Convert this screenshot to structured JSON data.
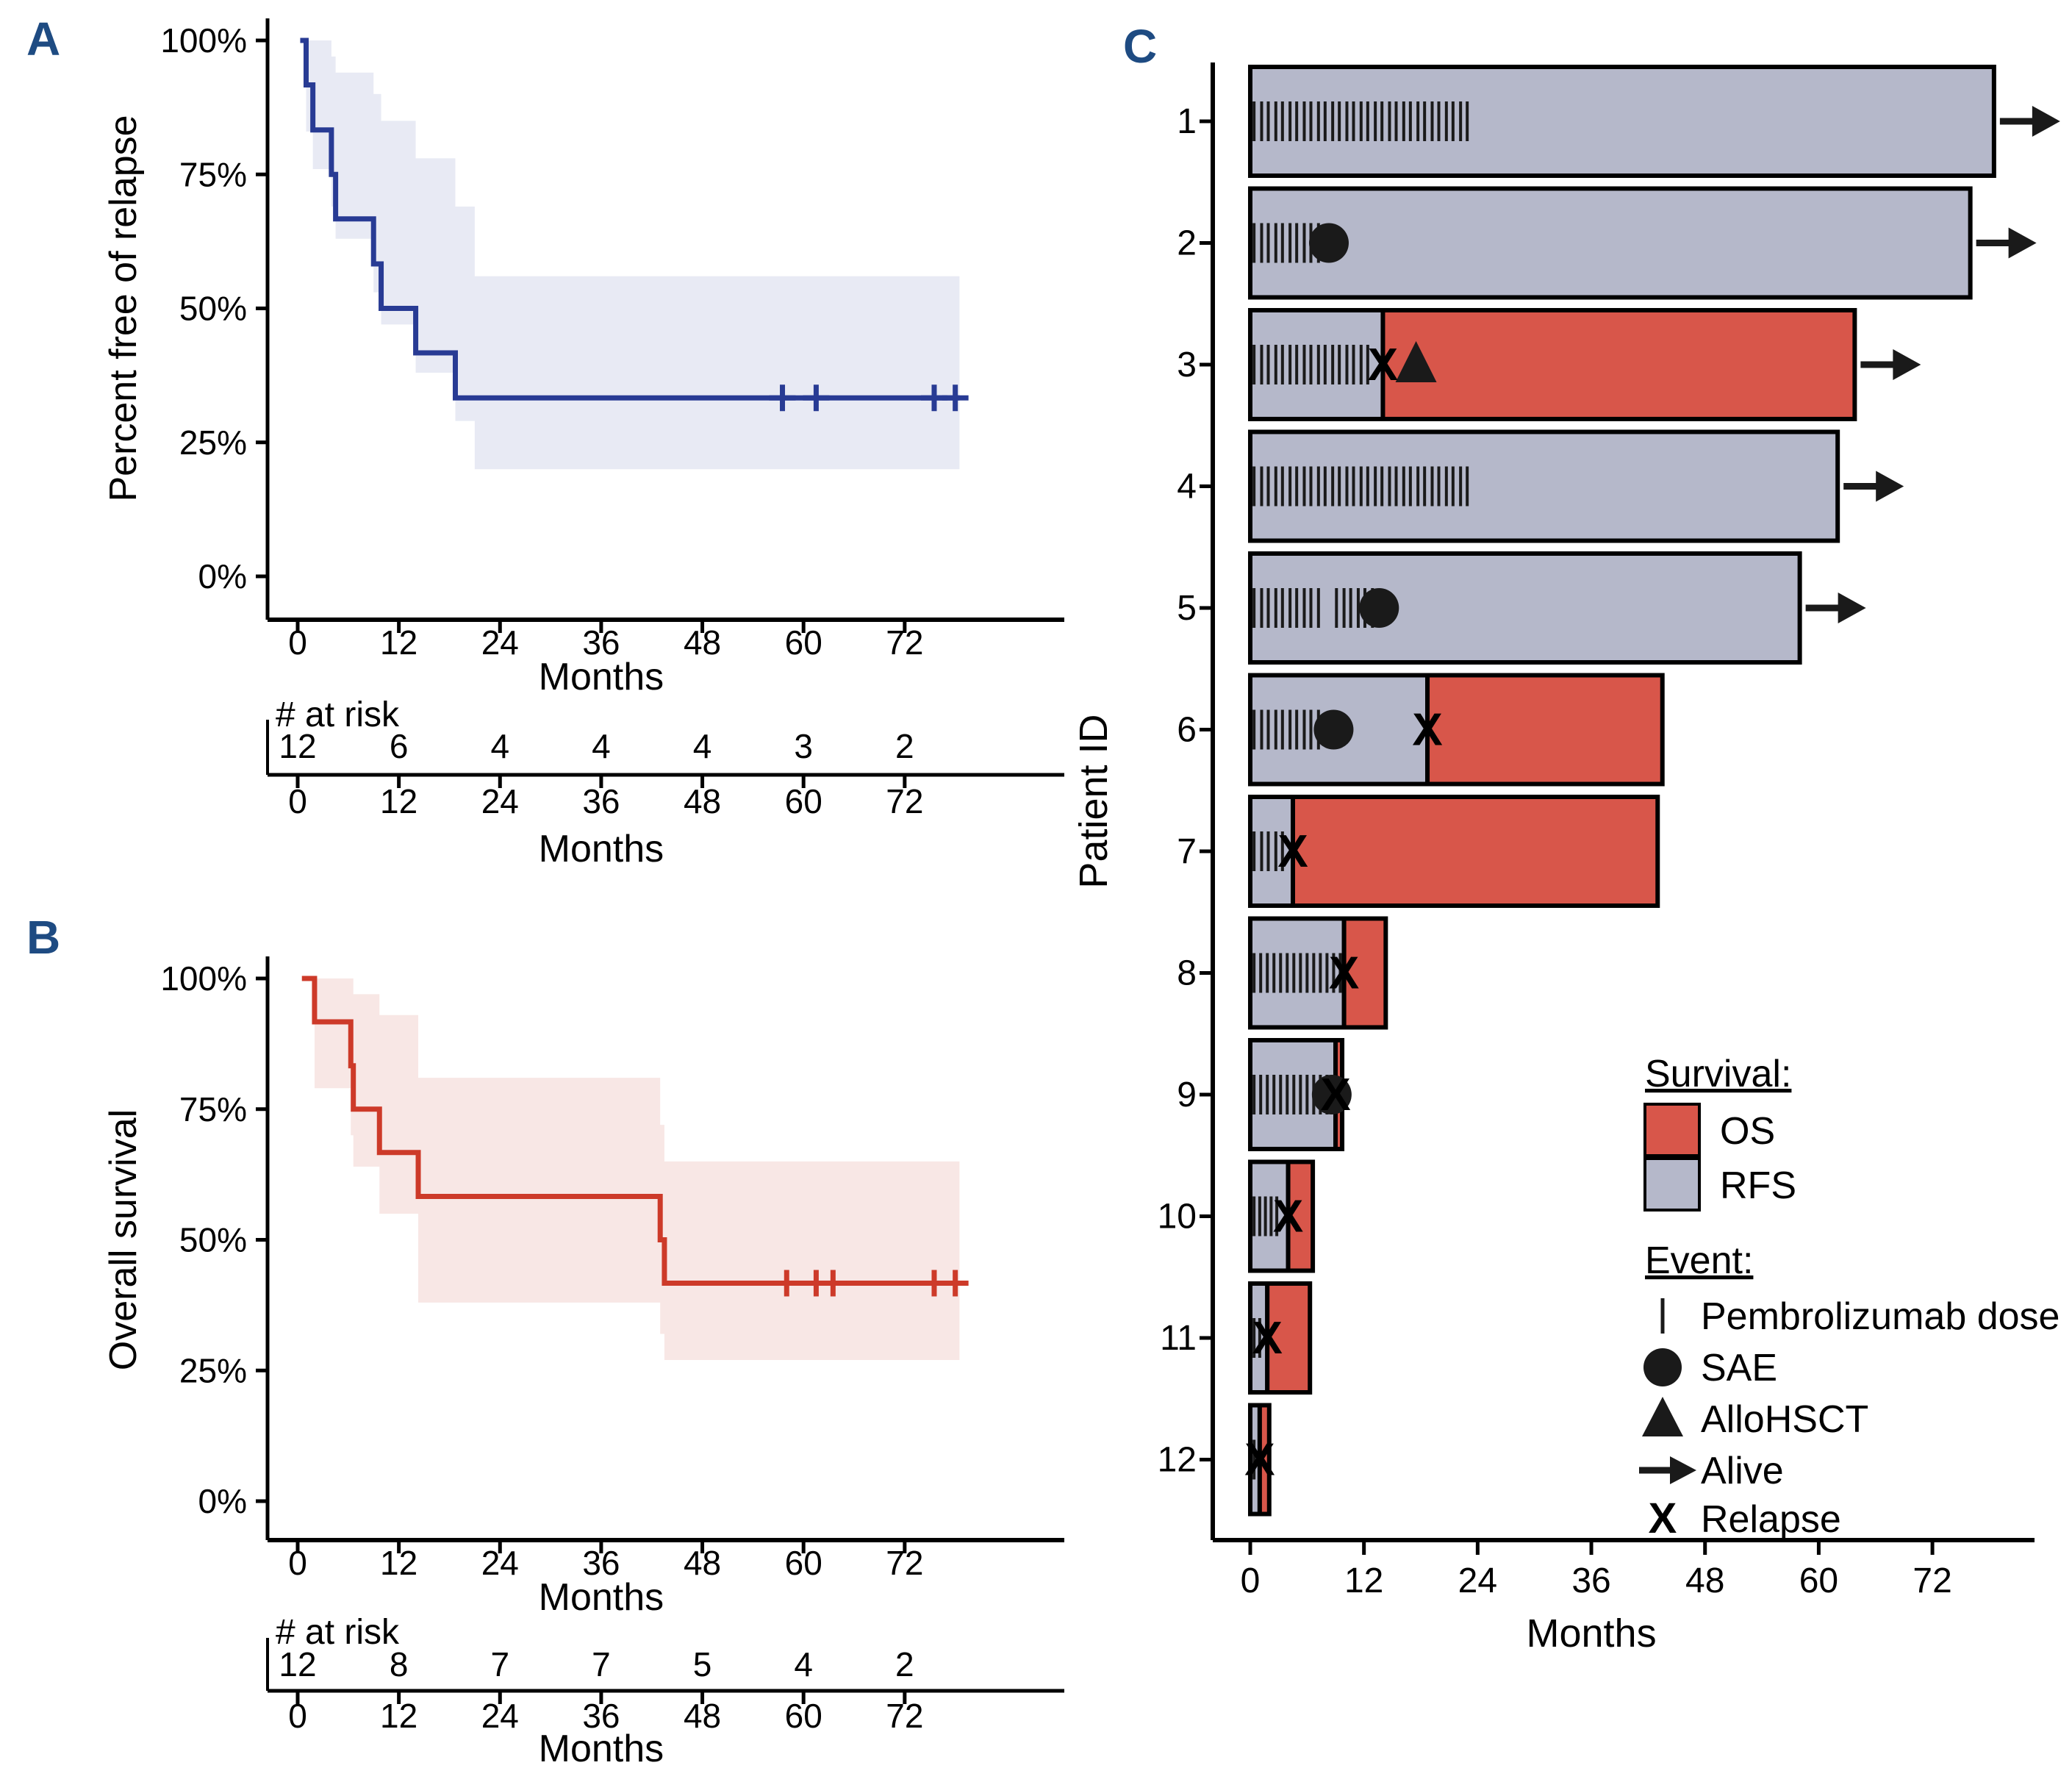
{
  "panels": {
    "a_label": "A",
    "b_label": "B",
    "c_label": "C"
  },
  "chart_data": [
    {
      "panel": "A",
      "type": "line",
      "subtype": "kaplan_meier_step",
      "ylabel": "Percent free of relapse",
      "xlabel": "Months",
      "xlim": [
        0,
        79
      ],
      "ylim": [
        0,
        100
      ],
      "x_ticks": [
        0,
        12,
        24,
        36,
        48,
        60,
        72
      ],
      "y_ticks": [
        {
          "pct": 0,
          "label": "0%"
        },
        {
          "pct": 25,
          "label": "25%"
        },
        {
          "pct": 50,
          "label": "50%"
        },
        {
          "pct": 75,
          "label": "75%"
        },
        {
          "pct": 100,
          "label": "100%"
        }
      ],
      "line_color": "#283B94",
      "ci_color": "#E8EAF4",
      "start_time": 0.3,
      "end_time": 78.5,
      "steps": [
        {
          "t": 1.0,
          "pct": 91.7
        },
        {
          "t": 1.8,
          "pct": 83.3
        },
        {
          "t": 4.0,
          "pct": 75.0
        },
        {
          "t": 4.5,
          "pct": 66.7
        },
        {
          "t": 9.0,
          "pct": 58.3
        },
        {
          "t": 9.9,
          "pct": 50.0
        },
        {
          "t": 14.0,
          "pct": 41.7
        },
        {
          "t": 18.7,
          "pct": 33.3
        }
      ],
      "censor_times": [
        57.5,
        61.5,
        75.5,
        78
      ],
      "ci_steps": [
        {
          "t": 1.0,
          "u": 100,
          "l": 83
        },
        {
          "t": 1.8,
          "u": 100,
          "l": 76
        },
        {
          "t": 4.0,
          "u": 97,
          "l": 69
        },
        {
          "t": 4.5,
          "u": 94,
          "l": 63
        },
        {
          "t": 9.0,
          "u": 90,
          "l": 53
        },
        {
          "t": 9.9,
          "u": 85,
          "l": 47
        },
        {
          "t": 14.0,
          "u": 78,
          "l": 38
        },
        {
          "t": 18.7,
          "u": 69,
          "l": 29
        },
        {
          "t": 21.0,
          "u": 56,
          "l": 20
        }
      ],
      "at_risk": {
        "label": "# at risk",
        "times": [
          0,
          12,
          24,
          36,
          48,
          60,
          72
        ],
        "counts": [
          12,
          6,
          4,
          4,
          4,
          3,
          2
        ],
        "xlabel": "Months"
      }
    },
    {
      "panel": "B",
      "type": "line",
      "subtype": "kaplan_meier_step",
      "ylabel": "Overall survival",
      "xlabel": "Months",
      "xlim": [
        0,
        79
      ],
      "ylim": [
        0,
        100
      ],
      "x_ticks": [
        0,
        12,
        24,
        36,
        48,
        60,
        72
      ],
      "y_ticks": [
        {
          "pct": 0,
          "label": "0%"
        },
        {
          "pct": 25,
          "label": "25%"
        },
        {
          "pct": 50,
          "label": "50%"
        },
        {
          "pct": 75,
          "label": "75%"
        },
        {
          "pct": 100,
          "label": "100%"
        }
      ],
      "line_color": "#CD3A29",
      "ci_color": "#F8E7E5",
      "start_time": 0.5,
      "end_time": 78.5,
      "steps": [
        {
          "t": 2.0,
          "pct": 91.7
        },
        {
          "t": 6.3,
          "pct": 83.3
        },
        {
          "t": 6.6,
          "pct": 75.0
        },
        {
          "t": 9.7,
          "pct": 66.7
        },
        {
          "t": 14.3,
          "pct": 58.3
        },
        {
          "t": 43.0,
          "pct": 50.0
        },
        {
          "t": 43.5,
          "pct": 41.7
        }
      ],
      "censor_times": [
        58,
        61.5,
        63.5,
        75.5,
        78
      ],
      "ci_steps": [
        {
          "t": 2.0,
          "u": 100,
          "l": 79
        },
        {
          "t": 6.3,
          "u": 100,
          "l": 70
        },
        {
          "t": 6.6,
          "u": 97,
          "l": 64
        },
        {
          "t": 9.7,
          "u": 93,
          "l": 55
        },
        {
          "t": 14.3,
          "u": 81,
          "l": 38
        },
        {
          "t": 43.0,
          "u": 72,
          "l": 32
        },
        {
          "t": 43.5,
          "u": 65,
          "l": 27
        }
      ],
      "at_risk": {
        "label": "# at risk",
        "times": [
          0,
          12,
          24,
          36,
          48,
          60,
          72
        ],
        "counts": [
          12,
          8,
          7,
          7,
          5,
          4,
          2
        ],
        "xlabel": "Months"
      }
    },
    {
      "panel": "C",
      "type": "bar",
      "subtype": "swimmer",
      "ylabel": "Patient ID",
      "xlabel": "Months",
      "xlim": [
        0,
        79
      ],
      "x_ticks": [
        0,
        12,
        24,
        36,
        48,
        60,
        72
      ],
      "colors": {
        "os": "#D8564A",
        "rfs": "#B5B8CA",
        "marker": "#1A1A1A"
      },
      "patients": [
        {
          "id": "1",
          "rfs_months": 78.5,
          "os_months": 78.5,
          "alive": true,
          "dose_months": [
            0.4,
            1.2,
            1.9,
            2.7,
            3.4,
            4.2,
            4.9,
            5.7,
            6.4,
            7.2,
            7.9,
            8.7,
            9.4,
            10.2,
            10.9,
            11.7,
            12.4,
            13.2,
            13.9,
            14.7,
            15.4,
            16.2,
            16.9,
            17.7,
            18.4,
            19.2,
            19.9,
            20.7,
            21.4,
            22.2,
            22.9
          ],
          "sae_months": [],
          "allohsct_month": null,
          "relapse_month": null
        },
        {
          "id": "2",
          "rfs_months": 76,
          "os_months": 76,
          "alive": true,
          "dose_months": [
            0.4,
            1.2,
            1.9,
            2.7,
            3.4,
            4.2,
            4.9,
            5.7,
            6.4,
            7.2
          ],
          "sae_months": [
            8.3
          ],
          "allohsct_month": null,
          "relapse_month": null
        },
        {
          "id": "3",
          "rfs_months": 14,
          "os_months": 63.8,
          "alive": true,
          "dose_months": [
            0.4,
            1.2,
            1.9,
            2.7,
            3.4,
            4.2,
            4.9,
            5.7,
            6.4,
            7.2,
            7.9,
            8.7,
            9.4,
            10.2,
            10.9,
            11.7,
            12.4
          ],
          "sae_months": [],
          "allohsct_month": 17.5,
          "relapse_month": 14
        },
        {
          "id": "4",
          "rfs_months": 62,
          "os_months": 62,
          "alive": true,
          "dose_months": [
            0.4,
            1.2,
            1.9,
            2.7,
            3.4,
            4.2,
            4.9,
            5.7,
            6.4,
            7.2,
            7.9,
            8.7,
            9.4,
            10.2,
            10.9,
            11.7,
            12.4,
            13.2,
            13.9,
            14.7,
            15.4,
            16.2,
            16.9,
            17.7,
            18.4,
            19.2,
            19.9,
            20.7,
            21.4,
            22.2,
            22.9
          ],
          "sae_months": [],
          "allohsct_month": null,
          "relapse_month": null
        },
        {
          "id": "5",
          "rfs_months": 58,
          "os_months": 58,
          "alive": true,
          "dose_months": [
            0.4,
            1.2,
            1.9,
            2.7,
            3.4,
            4.2,
            4.9,
            5.7,
            6.4,
            7.2,
            9.1,
            9.9,
            10.6,
            11.4,
            12.1,
            12.9
          ],
          "sae_months": [
            13.6
          ],
          "allohsct_month": null,
          "relapse_month": null
        },
        {
          "id": "6",
          "rfs_months": 18.7,
          "os_months": 43.5,
          "alive": false,
          "dose_months": [
            0.4,
            1.2,
            1.9,
            2.7,
            3.4,
            4.2,
            4.9,
            5.7,
            6.4,
            7.2
          ],
          "sae_months": [
            8.8
          ],
          "allohsct_month": null,
          "relapse_month": 18.7
        },
        {
          "id": "7",
          "rfs_months": 4.5,
          "os_months": 43,
          "alive": false,
          "dose_months": [
            0.4,
            1.2,
            1.9,
            2.7,
            3.4
          ],
          "sae_months": [],
          "allohsct_month": null,
          "relapse_month": 4.5
        },
        {
          "id": "8",
          "rfs_months": 9.9,
          "os_months": 14.3,
          "alive": false,
          "dose_months": [
            0.4,
            1.1,
            1.8,
            2.5,
            3.2,
            3.9,
            4.6,
            5.3,
            6.0,
            6.7,
            7.4,
            8.1,
            8.8,
            9.5
          ],
          "sae_months": [],
          "allohsct_month": null,
          "relapse_month": 9.9
        },
        {
          "id": "9",
          "rfs_months": 9.0,
          "os_months": 9.7,
          "alive": false,
          "dose_months": [
            0.4,
            1.1,
            1.8,
            2.5,
            3.2,
            3.9,
            4.6,
            5.3,
            6.0,
            6.7,
            7.4,
            8.1
          ],
          "sae_months": [
            8.6
          ],
          "allohsct_month": null,
          "relapse_month": 9.0
        },
        {
          "id": "10",
          "rfs_months": 4.0,
          "os_months": 6.6,
          "alive": false,
          "dose_months": [
            0.4,
            1.0,
            1.6,
            2.2,
            2.8
          ],
          "sae_months": [],
          "allohsct_month": null,
          "relapse_month": 4.0
        },
        {
          "id": "11",
          "rfs_months": 1.8,
          "os_months": 6.3,
          "alive": false,
          "dose_months": [
            0.4,
            1.0
          ],
          "sae_months": [],
          "allohsct_month": null,
          "relapse_month": 1.8
        },
        {
          "id": "12",
          "rfs_months": 1.0,
          "os_months": 2.0,
          "alive": false,
          "dose_months": [
            0.4
          ],
          "sae_months": [],
          "allohsct_month": null,
          "relapse_month": 1.0
        }
      ],
      "legend": {
        "survival_title": "Survival:",
        "survival_items": [
          {
            "label": "OS",
            "color": "#D8564A"
          },
          {
            "label": "RFS",
            "color": "#B5B8CA"
          }
        ],
        "event_title": "Event:",
        "event_items": [
          {
            "label": "Pembrolizumab dose",
            "marker": "tick"
          },
          {
            "label": "SAE",
            "marker": "circle"
          },
          {
            "label": "AlloHSCT",
            "marker": "triangle"
          },
          {
            "label": "Alive",
            "marker": "arrow"
          },
          {
            "label": "Relapse",
            "marker": "x"
          }
        ]
      }
    }
  ]
}
